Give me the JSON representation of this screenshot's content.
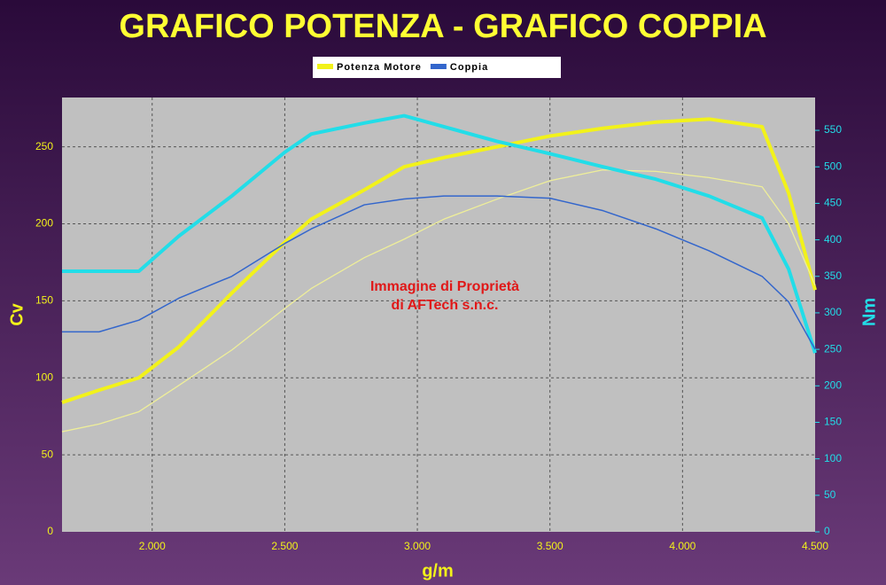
{
  "chart_data": {
    "type": "line",
    "title": "GRAFICO POTENZA - GRAFICO COPPIA",
    "x_label": "g/m",
    "y_label": "Cv",
    "y2_label": "Nm",
    "annotations": [
      "Immagine di Proprietà",
      "di AFTech s.n.c."
    ],
    "x": [
      1660,
      1800,
      1950,
      2100,
      2300,
      2500,
      2600,
      2800,
      2950,
      3100,
      3300,
      3500,
      3700,
      3900,
      4100,
      4300,
      4400,
      4500
    ],
    "series": [
      {
        "name": "Potenza Motore",
        "color": "#f2f21a",
        "width": 4,
        "values": [
          84,
          92,
          100,
          120,
          155,
          188,
          203,
          222,
          237,
          243,
          250,
          257,
          262,
          266,
          268,
          263,
          220,
          157
        ]
      },
      {
        "color": "#eeee99",
        "width": 1.3,
        "values": [
          65,
          70,
          78,
          95,
          118,
          145,
          158,
          178,
          190,
          203,
          216,
          228,
          235,
          234,
          230,
          224,
          200,
          160
        ]
      },
      {
        "color": "#22dde8",
        "width": 4,
        "axis": "y2",
        "values": [
          357,
          357,
          357,
          405,
          460,
          520,
          545,
          560,
          570,
          555,
          535,
          518,
          500,
          483,
          460,
          430,
          360,
          245
        ]
      },
      {
        "name": "Coppia",
        "color": "#3366cc",
        "width": 1.5,
        "axis": "y2",
        "values": [
          274,
          274,
          290,
          320,
          350,
          395,
          415,
          448,
          456,
          460,
          460,
          457,
          440,
          415,
          385,
          350,
          315,
          250
        ]
      }
    ],
    "xlim": [
      1660,
      4500
    ],
    "xticks": [
      {
        "value": 2000,
        "label": "2.000"
      },
      {
        "value": 2500,
        "label": "2.500"
      },
      {
        "value": 3000,
        "label": "3.000"
      },
      {
        "value": 3500,
        "label": "3.500"
      },
      {
        "value": 4000,
        "label": "4.000"
      },
      {
        "value": 4500,
        "label": "4.500"
      }
    ],
    "ylim": [
      0,
      282
    ],
    "yticks": [
      0,
      50,
      100,
      150,
      200,
      250
    ],
    "y2lim": [
      0,
      595
    ],
    "y2ticks": [
      0,
      50,
      100,
      150,
      200,
      250,
      300,
      350,
      400,
      450,
      500,
      550
    ],
    "grid": true
  }
}
